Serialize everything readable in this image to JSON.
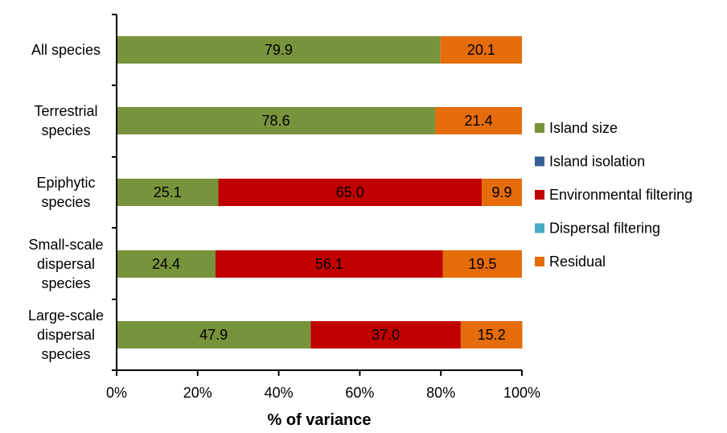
{
  "chart_data": {
    "type": "bar",
    "orientation": "horizontal",
    "stacked": true,
    "categories": [
      [
        "All species"
      ],
      [
        "Terrestrial",
        "species"
      ],
      [
        "Epiphytic",
        "species"
      ],
      [
        "Small-scale",
        "dispersal",
        "species"
      ],
      [
        "Large-scale",
        "dispersal",
        "species"
      ]
    ],
    "series": [
      {
        "name": "Island size",
        "color": "#77933c",
        "values": [
          79.9,
          78.6,
          25.1,
          24.4,
          47.9
        ]
      },
      {
        "name": "Island isolation",
        "color": "#376092",
        "values": [
          0,
          0,
          0,
          0,
          0
        ]
      },
      {
        "name": "Environmental filtering",
        "color": "#c00000",
        "values": [
          0,
          0,
          65.0,
          56.1,
          37.0
        ]
      },
      {
        "name": "Dispersal filtering",
        "color": "#4bacc6",
        "values": [
          0,
          0,
          0,
          0,
          0
        ]
      },
      {
        "name": "Residual",
        "color": "#e46c0a",
        "values": [
          20.1,
          21.4,
          9.9,
          19.5,
          15.2
        ]
      }
    ],
    "data_labels": [
      [
        "79.9",
        "",
        "",
        "",
        "20.1"
      ],
      [
        "78.6",
        "",
        "",
        "",
        "21.4"
      ],
      [
        "25.1",
        "",
        "65.0",
        "",
        "9.9"
      ],
      [
        "24.4",
        "",
        "56.1",
        "",
        "19.5"
      ],
      [
        "47.9",
        "",
        "37.0",
        "",
        "15.2"
      ]
    ],
    "xlabel": "% of variance",
    "xlim": [
      0,
      100
    ],
    "xticks": [
      0,
      20,
      40,
      60,
      80,
      100
    ],
    "xtick_labels": [
      "0%",
      "20%",
      "40%",
      "60%",
      "80%",
      "100%"
    ],
    "grid": false,
    "legend_position": "right"
  }
}
